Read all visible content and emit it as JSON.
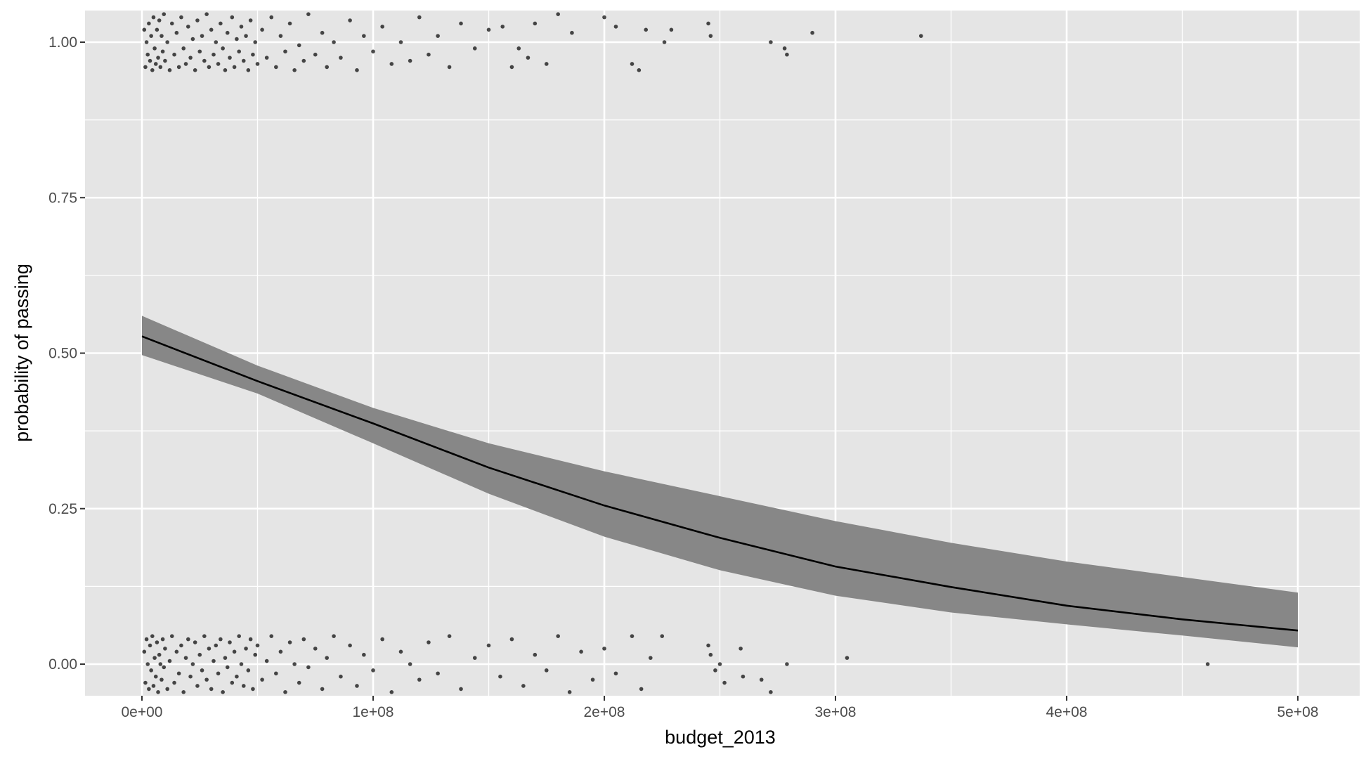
{
  "chart_data": {
    "type": "scatter",
    "title": "",
    "xlabel": "budget_2013",
    "ylabel": "probability of passing",
    "xlim": [
      -25000000,
      515000000
    ],
    "ylim": [
      -0.05,
      1.05
    ],
    "x_ticks": [
      {
        "value": 0,
        "label": "0e+00"
      },
      {
        "value": 100000000,
        "label": "1e+08"
      },
      {
        "value": 200000000,
        "label": "2e+08"
      },
      {
        "value": 300000000,
        "label": "3e+08"
      },
      {
        "value": 400000000,
        "label": "4e+08"
      },
      {
        "value": 500000000,
        "label": "5e+08"
      }
    ],
    "y_ticks": [
      {
        "value": 0,
        "label": "0.00"
      },
      {
        "value": 0.25,
        "label": "0.25"
      },
      {
        "value": 0.5,
        "label": "0.50"
      },
      {
        "value": 0.75,
        "label": "0.75"
      },
      {
        "value": 1,
        "label": "1.00"
      }
    ],
    "grid": true,
    "legend": "none",
    "colors": {
      "panel_background": "#e5e5e5",
      "grid": "#ffffff",
      "points": "#000000",
      "fit_line": "#000000",
      "ribbon": "#878787"
    },
    "logistic_fit": {
      "x": [
        0,
        50000000,
        100000000,
        150000000,
        200000000,
        250000000,
        300000000,
        350000000,
        400000000,
        450000000,
        500000000
      ],
      "y": [
        0.527,
        0.455,
        0.387,
        0.316,
        0.255,
        0.203,
        0.157,
        0.124,
        0.094,
        0.072,
        0.054
      ],
      "lower": [
        0.497,
        0.435,
        0.355,
        0.274,
        0.205,
        0.151,
        0.11,
        0.083,
        0.064,
        0.046,
        0.027
      ],
      "upper": [
        0.56,
        0.48,
        0.412,
        0.355,
        0.31,
        0.27,
        0.23,
        0.195,
        0.165,
        0.14,
        0.115
      ]
    },
    "points_pass": [
      [
        1000000,
        1.02
      ],
      [
        1500000,
        0.96
      ],
      [
        2000000,
        1.0
      ],
      [
        2500000,
        0.98
      ],
      [
        3000000,
        1.03
      ],
      [
        3500000,
        0.97
      ],
      [
        4000000,
        1.01
      ],
      [
        4500000,
        0.955
      ],
      [
        5000000,
        1.04
      ],
      [
        5500000,
        0.99
      ],
      [
        6000000,
        0.965
      ],
      [
        6500000,
        1.02
      ],
      [
        7000000,
        0.975
      ],
      [
        7500000,
        1.035
      ],
      [
        8000000,
        0.96
      ],
      [
        8500000,
        1.01
      ],
      [
        9000000,
        0.985
      ],
      [
        9500000,
        1.045
      ],
      [
        10000000,
        0.97
      ],
      [
        11000000,
        1.0
      ],
      [
        12000000,
        0.955
      ],
      [
        13000000,
        1.03
      ],
      [
        14000000,
        0.98
      ],
      [
        15000000,
        1.015
      ],
      [
        16000000,
        0.96
      ],
      [
        17000000,
        1.04
      ],
      [
        18000000,
        0.99
      ],
      [
        19000000,
        0.965
      ],
      [
        20000000,
        1.025
      ],
      [
        21000000,
        0.975
      ],
      [
        22000000,
        1.005
      ],
      [
        23000000,
        0.955
      ],
      [
        24000000,
        1.035
      ],
      [
        25000000,
        0.985
      ],
      [
        26000000,
        1.01
      ],
      [
        27000000,
        0.97
      ],
      [
        28000000,
        1.045
      ],
      [
        29000000,
        0.96
      ],
      [
        30000000,
        1.02
      ],
      [
        31000000,
        0.98
      ],
      [
        32000000,
        1.0
      ],
      [
        33000000,
        0.965
      ],
      [
        34000000,
        1.03
      ],
      [
        35000000,
        0.99
      ],
      [
        36000000,
        0.955
      ],
      [
        37000000,
        1.015
      ],
      [
        38000000,
        0.975
      ],
      [
        39000000,
        1.04
      ],
      [
        40000000,
        0.96
      ],
      [
        41000000,
        1.005
      ],
      [
        42000000,
        0.985
      ],
      [
        43000000,
        1.025
      ],
      [
        44000000,
        0.97
      ],
      [
        45000000,
        1.01
      ],
      [
        46000000,
        0.955
      ],
      [
        47000000,
        1.035
      ],
      [
        48000000,
        0.98
      ],
      [
        49000000,
        1.0
      ],
      [
        50000000,
        0.965
      ],
      [
        52000000,
        1.02
      ],
      [
        54000000,
        0.975
      ],
      [
        56000000,
        1.04
      ],
      [
        58000000,
        0.96
      ],
      [
        60000000,
        1.01
      ],
      [
        62000000,
        0.985
      ],
      [
        64000000,
        1.03
      ],
      [
        66000000,
        0.955
      ],
      [
        68000000,
        0.995
      ],
      [
        70000000,
        0.97
      ],
      [
        72000000,
        1.045
      ],
      [
        75000000,
        0.98
      ],
      [
        78000000,
        1.015
      ],
      [
        80000000,
        0.96
      ],
      [
        83000000,
        1.0
      ],
      [
        86000000,
        0.975
      ],
      [
        90000000,
        1.035
      ],
      [
        93000000,
        0.955
      ],
      [
        96000000,
        1.01
      ],
      [
        100000000,
        0.985
      ],
      [
        104000000,
        1.025
      ],
      [
        108000000,
        0.965
      ],
      [
        112000000,
        1.0
      ],
      [
        116000000,
        0.97
      ],
      [
        120000000,
        1.04
      ],
      [
        124000000,
        0.98
      ],
      [
        128000000,
        1.01
      ],
      [
        133000000,
        0.96
      ],
      [
        138000000,
        1.03
      ],
      [
        144000000,
        0.99
      ],
      [
        150000000,
        1.02
      ],
      [
        156000000,
        1.025
      ],
      [
        160000000,
        0.96
      ],
      [
        163000000,
        0.99
      ],
      [
        167000000,
        0.975
      ],
      [
        170000000,
        1.03
      ],
      [
        175000000,
        0.965
      ],
      [
        180000000,
        1.045
      ],
      [
        186000000,
        1.015
      ],
      [
        200000000,
        1.04
      ],
      [
        205000000,
        1.025
      ],
      [
        212000000,
        0.965
      ],
      [
        215000000,
        0.955
      ],
      [
        218000000,
        1.02
      ],
      [
        226000000,
        1.0
      ],
      [
        229000000,
        1.02
      ],
      [
        245000000,
        1.03
      ],
      [
        246000000,
        1.01
      ],
      [
        272000000,
        1.0
      ],
      [
        278000000,
        0.99
      ],
      [
        279000000,
        0.98
      ],
      [
        290000000,
        1.015
      ],
      [
        337000000,
        1.01
      ]
    ],
    "points_fail": [
      [
        1000000,
        0.02
      ],
      [
        1500000,
        -0.03
      ],
      [
        2000000,
        0.04
      ],
      [
        2500000,
        0.0
      ],
      [
        3000000,
        -0.04
      ],
      [
        3500000,
        0.03
      ],
      [
        4000000,
        -0.01
      ],
      [
        4500000,
        0.045
      ],
      [
        5000000,
        -0.035
      ],
      [
        5500000,
        0.01
      ],
      [
        6000000,
        -0.02
      ],
      [
        6500000,
        0.035
      ],
      [
        7000000,
        -0.045
      ],
      [
        7500000,
        0.015
      ],
      [
        8000000,
        0.0
      ],
      [
        8500000,
        -0.025
      ],
      [
        9000000,
        0.04
      ],
      [
        9500000,
        -0.005
      ],
      [
        10000000,
        0.025
      ],
      [
        11000000,
        -0.04
      ],
      [
        12000000,
        0.005
      ],
      [
        13000000,
        0.045
      ],
      [
        14000000,
        -0.03
      ],
      [
        15000000,
        0.02
      ],
      [
        16000000,
        -0.015
      ],
      [
        17000000,
        0.03
      ],
      [
        18000000,
        -0.045
      ],
      [
        19000000,
        0.01
      ],
      [
        20000000,
        0.04
      ],
      [
        21000000,
        -0.02
      ],
      [
        22000000,
        0.0
      ],
      [
        23000000,
        0.035
      ],
      [
        24000000,
        -0.035
      ],
      [
        25000000,
        0.015
      ],
      [
        26000000,
        -0.01
      ],
      [
        27000000,
        0.045
      ],
      [
        28000000,
        -0.025
      ],
      [
        29000000,
        0.025
      ],
      [
        30000000,
        -0.04
      ],
      [
        31000000,
        0.005
      ],
      [
        32000000,
        0.03
      ],
      [
        33000000,
        -0.015
      ],
      [
        34000000,
        0.04
      ],
      [
        35000000,
        -0.045
      ],
      [
        36000000,
        0.01
      ],
      [
        37000000,
        -0.005
      ],
      [
        38000000,
        0.035
      ],
      [
        39000000,
        -0.03
      ],
      [
        40000000,
        0.02
      ],
      [
        41000000,
        -0.02
      ],
      [
        42000000,
        0.045
      ],
      [
        43000000,
        0.0
      ],
      [
        44000000,
        -0.035
      ],
      [
        45000000,
        0.025
      ],
      [
        46000000,
        -0.01
      ],
      [
        47000000,
        0.04
      ],
      [
        48000000,
        -0.04
      ],
      [
        49000000,
        0.015
      ],
      [
        50000000,
        0.03
      ],
      [
        52000000,
        -0.025
      ],
      [
        54000000,
        0.005
      ],
      [
        56000000,
        0.045
      ],
      [
        58000000,
        -0.015
      ],
      [
        60000000,
        0.02
      ],
      [
        62000000,
        -0.045
      ],
      [
        64000000,
        0.035
      ],
      [
        66000000,
        0.0
      ],
      [
        68000000,
        -0.03
      ],
      [
        70000000,
        0.04
      ],
      [
        72000000,
        -0.005
      ],
      [
        75000000,
        0.025
      ],
      [
        78000000,
        -0.04
      ],
      [
        80000000,
        0.01
      ],
      [
        83000000,
        0.045
      ],
      [
        86000000,
        -0.02
      ],
      [
        90000000,
        0.03
      ],
      [
        93000000,
        -0.035
      ],
      [
        96000000,
        0.015
      ],
      [
        100000000,
        -0.01
      ],
      [
        104000000,
        0.04
      ],
      [
        108000000,
        -0.045
      ],
      [
        112000000,
        0.02
      ],
      [
        116000000,
        0.0
      ],
      [
        120000000,
        -0.025
      ],
      [
        124000000,
        0.035
      ],
      [
        128000000,
        -0.015
      ],
      [
        133000000,
        0.045
      ],
      [
        138000000,
        -0.04
      ],
      [
        144000000,
        0.01
      ],
      [
        150000000,
        0.03
      ],
      [
        155000000,
        -0.02
      ],
      [
        160000000,
        0.04
      ],
      [
        165000000,
        -0.035
      ],
      [
        170000000,
        0.015
      ],
      [
        175000000,
        -0.01
      ],
      [
        180000000,
        0.045
      ],
      [
        185000000,
        -0.045
      ],
      [
        190000000,
        0.02
      ],
      [
        195000000,
        -0.025
      ],
      [
        200000000,
        0.025
      ],
      [
        205000000,
        -0.015
      ],
      [
        212000000,
        0.045
      ],
      [
        216000000,
        -0.04
      ],
      [
        220000000,
        0.01
      ],
      [
        225000000,
        0.045
      ],
      [
        245000000,
        0.03
      ],
      [
        246000000,
        0.015
      ],
      [
        248000000,
        -0.01
      ],
      [
        250000000,
        0.0
      ],
      [
        252000000,
        -0.03
      ],
      [
        259000000,
        0.025
      ],
      [
        260000000,
        -0.02
      ],
      [
        268000000,
        -0.025
      ],
      [
        272000000,
        -0.045
      ],
      [
        279000000,
        0.0
      ],
      [
        305000000,
        0.01
      ],
      [
        461000000,
        0.0
      ]
    ]
  }
}
